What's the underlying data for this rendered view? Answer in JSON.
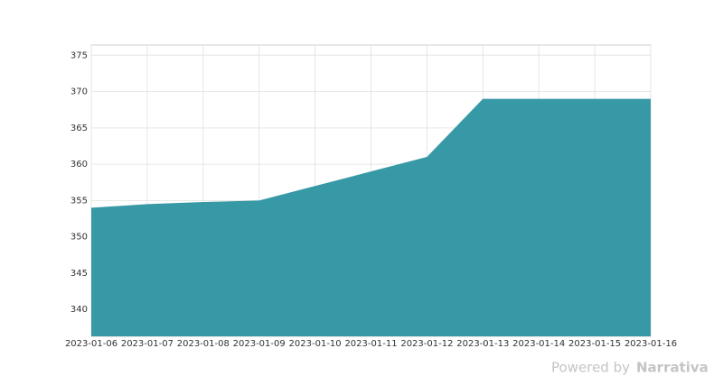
{
  "chart_data": {
    "type": "area",
    "x": [
      "2023-01-06",
      "2023-01-07",
      "2023-01-08",
      "2023-01-09",
      "2023-01-10",
      "2023-01-11",
      "2023-01-12",
      "2023-01-13",
      "2023-01-14",
      "2023-01-15",
      "2023-01-16"
    ],
    "values": [
      354,
      354.5,
      354.8,
      355,
      357,
      359,
      361,
      369,
      369,
      369,
      369
    ],
    "color": "#3497a4",
    "ylim": [
      336.3,
      376.4
    ],
    "yticks": [
      340,
      345,
      350,
      355,
      360,
      365,
      370,
      375
    ],
    "grid": true
  },
  "footer": {
    "powered": "Powered by",
    "brand": "Narrativa"
  }
}
